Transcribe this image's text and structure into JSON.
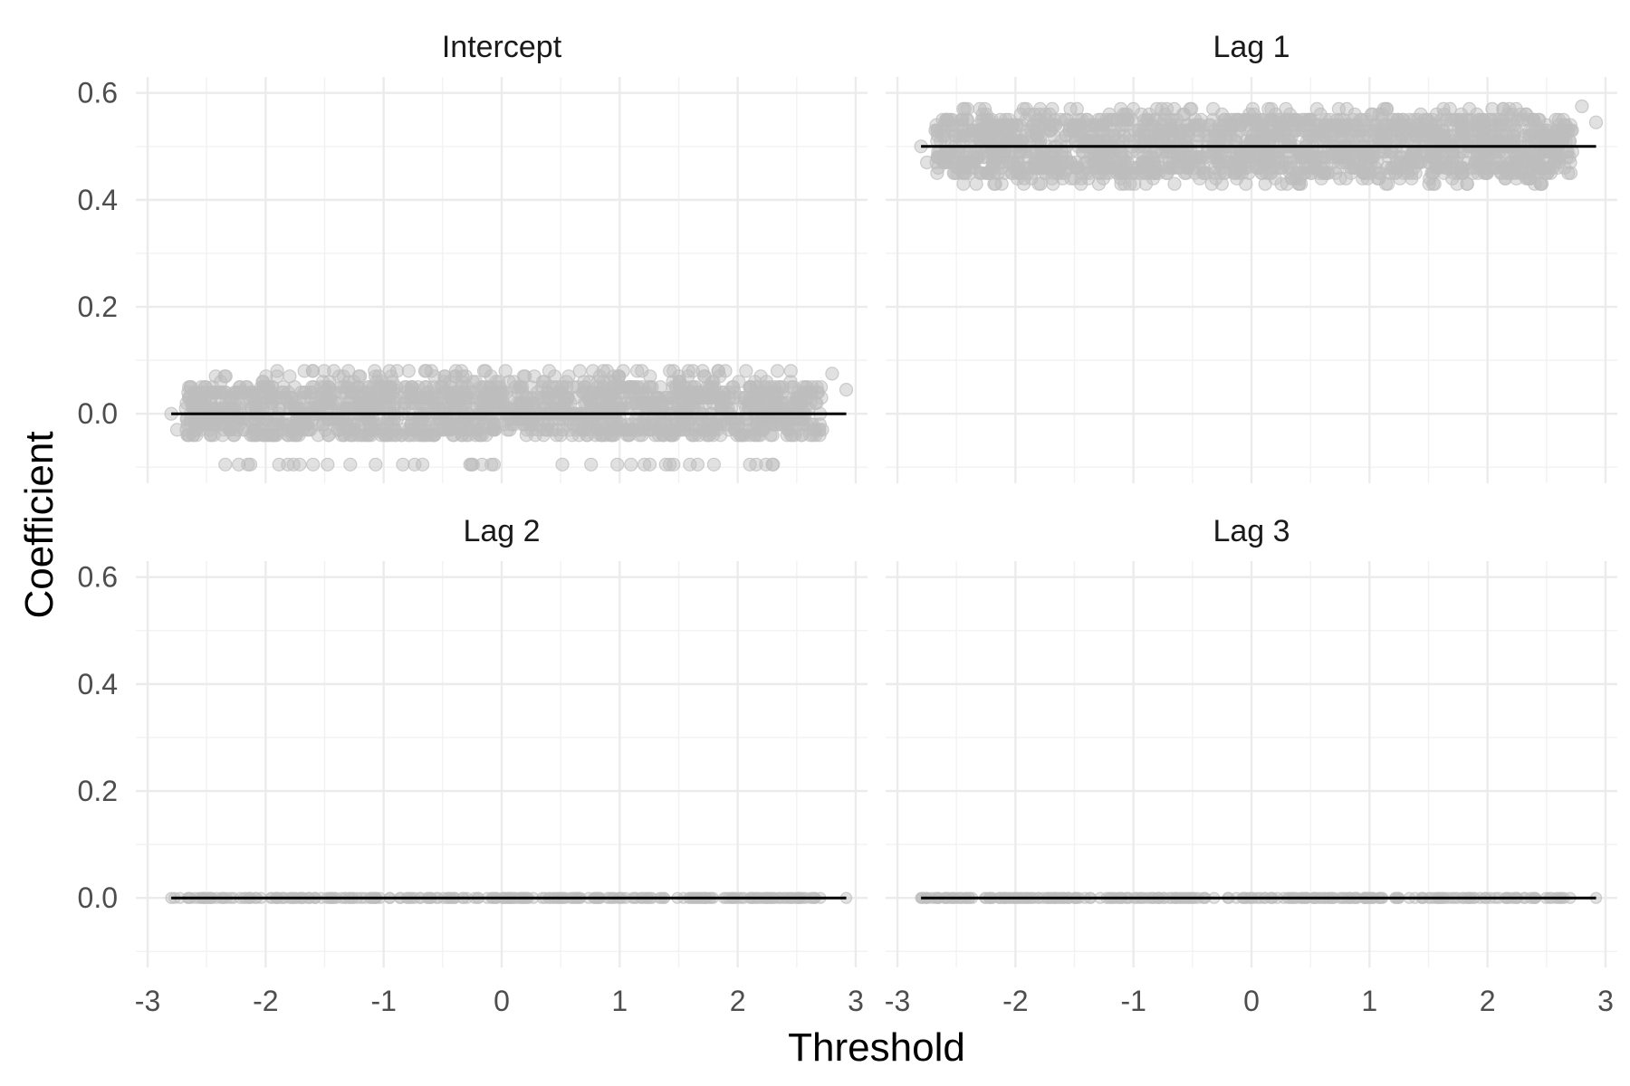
{
  "chart_data": {
    "type": "scatter",
    "layout": "facet-grid-2x2",
    "xlabel": "Threshold",
    "ylabel": "Coefficient",
    "xlim": [
      -3.1,
      3.1
    ],
    "ylim": [
      -0.13,
      0.63
    ],
    "x_ticks": [
      -3,
      -2,
      -1,
      0,
      1,
      2,
      3
    ],
    "y_ticks": [
      0.0,
      0.2,
      0.4,
      0.6
    ],
    "x_tick_labels": [
      "-3",
      "-2",
      "-1",
      "0",
      "1",
      "2",
      "3"
    ],
    "y_tick_labels": [
      "0.0",
      "0.2",
      "0.4",
      "0.6"
    ],
    "grid": true,
    "point_color": "#bdbdbd",
    "line_color": "#000000",
    "panels": [
      {
        "name": "Intercept",
        "true_value": 0.0,
        "x_range": [
          -2.8,
          2.92
        ],
        "point_center": 0.0,
        "point_spread": 0.035,
        "point_levels": [
          0.08,
          0.07,
          0.06,
          0.05,
          0.04,
          0.03,
          0.02,
          0.01,
          0.0,
          -0.01,
          -0.02,
          -0.03,
          -0.04,
          -0.095
        ]
      },
      {
        "name": "Lag 1",
        "true_value": 0.5,
        "x_range": [
          -2.8,
          2.92
        ],
        "point_center": 0.5,
        "point_spread": 0.035,
        "point_levels": [
          0.57,
          0.56,
          0.55,
          0.54,
          0.53,
          0.52,
          0.51,
          0.5,
          0.49,
          0.48,
          0.47,
          0.46,
          0.45,
          0.44,
          0.43
        ]
      },
      {
        "name": "Lag 2",
        "true_value": 0.0,
        "x_range": [
          -2.8,
          2.92
        ],
        "point_center": 0.0,
        "point_spread": 0.0,
        "point_levels": [
          0.0
        ]
      },
      {
        "name": "Lag 3",
        "true_value": 0.0,
        "x_range": [
          -2.8,
          2.92
        ],
        "point_center": 0.0,
        "point_spread": 0.0,
        "point_levels": [
          0.0
        ]
      }
    ]
  }
}
